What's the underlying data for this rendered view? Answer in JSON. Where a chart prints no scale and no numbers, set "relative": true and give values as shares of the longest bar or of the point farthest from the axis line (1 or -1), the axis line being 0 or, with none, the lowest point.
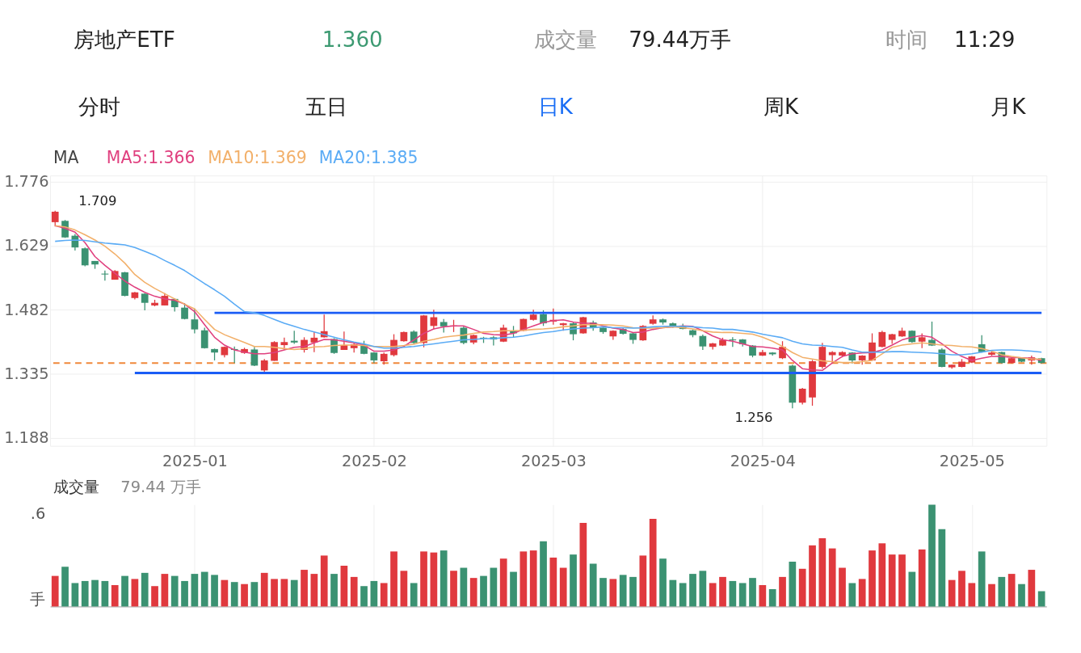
{
  "chart_data": [
    {
      "type": "candlestick",
      "title": "房地产ETF",
      "annotations": [
        "1.360",
        "成交量",
        "79.44万手",
        "时间",
        "11:29",
        "分时",
        "五日",
        "日K",
        "周K",
        "月K",
        "1.709",
        "1.256"
      ],
      "categories": [
        null,
        null,
        null,
        null,
        null,
        null,
        null,
        null,
        null,
        null,
        null,
        null,
        null,
        null,
        "2025-01",
        null,
        null,
        null,
        null,
        null,
        null,
        null,
        null,
        null,
        null,
        null,
        null,
        null,
        null,
        null,
        null,
        null,
        "2025-02",
        null,
        null,
        null,
        null,
        null,
        null,
        null,
        null,
        null,
        null,
        null,
        null,
        null,
        null,
        null,
        null,
        null,
        "2025-03",
        null,
        null,
        null,
        null,
        null,
        null,
        null,
        null,
        null,
        null,
        null,
        null,
        null,
        null,
        null,
        null,
        null,
        null,
        null,
        null,
        "2025-04",
        null,
        null,
        null,
        null,
        null,
        null,
        null,
        null,
        null,
        null,
        null,
        null,
        null,
        null,
        null,
        null,
        null,
        null,
        null,
        null,
        "2025-05",
        null,
        null,
        null,
        null,
        null,
        null,
        null
      ],
      "ohlc": [
        [
          1.683,
          1.709,
          1.673,
          1.707
        ],
        [
          1.686,
          1.688,
          1.647,
          1.648
        ],
        [
          1.652,
          1.656,
          1.618,
          1.625
        ],
        [
          1.623,
          1.625,
          1.582,
          1.584
        ],
        [
          1.594,
          1.594,
          1.576,
          1.586
        ],
        [
          1.565,
          1.572,
          1.549,
          1.563
        ],
        [
          1.551,
          1.573,
          1.551,
          1.571
        ],
        [
          1.568,
          1.569,
          1.513,
          1.514
        ],
        [
          1.509,
          1.523,
          1.506,
          1.522
        ],
        [
          1.519,
          1.52,
          1.481,
          1.498
        ],
        [
          1.492,
          1.505,
          1.49,
          1.498
        ],
        [
          1.492,
          1.52,
          1.492,
          1.514
        ],
        [
          1.507,
          1.508,
          1.478,
          1.488
        ],
        [
          1.487,
          1.497,
          1.46,
          1.461
        ],
        [
          1.46,
          1.485,
          1.428,
          1.437
        ],
        [
          1.435,
          1.441,
          1.393,
          1.394
        ],
        [
          1.392,
          1.393,
          1.366,
          1.384
        ],
        [
          1.378,
          1.398,
          1.373,
          1.397
        ],
        [
          1.392,
          1.398,
          1.36,
          1.39
        ],
        [
          1.383,
          1.395,
          1.381,
          1.392
        ],
        [
          1.391,
          1.397,
          1.353,
          1.354
        ],
        [
          1.343,
          1.369,
          1.34,
          1.366
        ],
        [
          1.365,
          1.41,
          1.365,
          1.408
        ],
        [
          1.401,
          1.418,
          1.39,
          1.408
        ],
        [
          1.411,
          1.434,
          1.404,
          1.407
        ],
        [
          1.39,
          1.419,
          1.384,
          1.413
        ],
        [
          1.407,
          1.431,
          1.385,
          1.418
        ],
        [
          1.419,
          1.471,
          1.418,
          1.433
        ],
        [
          1.415,
          1.417,
          1.381,
          1.383
        ],
        [
          1.39,
          1.432,
          1.39,
          1.401
        ],
        [
          1.394,
          1.408,
          1.384,
          1.403
        ],
        [
          1.403,
          1.411,
          1.38,
          1.381
        ],
        [
          1.384,
          1.385,
          1.36,
          1.366
        ],
        [
          1.364,
          1.384,
          1.356,
          1.381
        ],
        [
          1.378,
          1.426,
          1.375,
          1.413
        ],
        [
          1.41,
          1.432,
          1.409,
          1.431
        ],
        [
          1.432,
          1.435,
          1.404,
          1.406
        ],
        [
          1.406,
          1.47,
          1.396,
          1.469
        ],
        [
          1.445,
          1.482,
          1.437,
          1.465
        ],
        [
          1.454,
          1.461,
          1.43,
          1.444
        ],
        [
          1.444,
          1.459,
          1.431,
          1.446
        ],
        [
          1.441,
          1.444,
          1.403,
          1.406
        ],
        [
          1.407,
          1.425,
          1.403,
          1.424
        ],
        [
          1.418,
          1.42,
          1.406,
          1.416
        ],
        [
          1.419,
          1.422,
          1.4,
          1.414
        ],
        [
          1.409,
          1.448,
          1.408,
          1.441
        ],
        [
          1.434,
          1.445,
          1.419,
          1.428
        ],
        [
          1.434,
          1.462,
          1.433,
          1.461
        ],
        [
          1.459,
          1.482,
          1.457,
          1.471
        ],
        [
          1.472,
          1.481,
          1.445,
          1.451
        ],
        [
          1.455,
          1.485,
          1.448,
          1.459
        ],
        [
          1.447,
          1.452,
          1.434,
          1.451
        ],
        [
          1.451,
          1.453,
          1.412,
          1.426
        ],
        [
          1.428,
          1.466,
          1.427,
          1.465
        ],
        [
          1.453,
          1.457,
          1.434,
          1.44
        ],
        [
          1.441,
          1.443,
          1.427,
          1.431
        ],
        [
          1.421,
          1.435,
          1.413,
          1.434
        ],
        [
          1.438,
          1.44,
          1.425,
          1.427
        ],
        [
          1.428,
          1.429,
          1.404,
          1.413
        ],
        [
          1.412,
          1.447,
          1.411,
          1.445
        ],
        [
          1.45,
          1.469,
          1.448,
          1.46
        ],
        [
          1.46,
          1.462,
          1.448,
          1.453
        ],
        [
          1.451,
          1.453,
          1.441,
          1.444
        ],
        [
          1.445,
          1.45,
          1.437,
          1.438
        ],
        [
          1.435,
          1.437,
          1.419,
          1.424
        ],
        [
          1.422,
          1.425,
          1.39,
          1.398
        ],
        [
          1.397,
          1.406,
          1.391,
          1.405
        ],
        [
          1.4,
          1.418,
          1.399,
          1.413
        ],
        [
          1.414,
          1.419,
          1.397,
          1.412
        ],
        [
          1.414,
          1.415,
          1.398,
          1.403
        ],
        [
          1.4,
          1.401,
          1.373,
          1.377
        ],
        [
          1.377,
          1.39,
          1.376,
          1.385
        ],
        [
          1.384,
          1.385,
          1.377,
          1.38
        ],
        [
          1.371,
          1.41,
          1.369,
          1.397
        ],
        [
          1.354,
          1.356,
          1.256,
          1.269
        ],
        [
          1.269,
          1.303,
          1.265,
          1.301
        ],
        [
          1.281,
          1.367,
          1.262,
          1.364
        ],
        [
          1.351,
          1.406,
          1.347,
          1.397
        ],
        [
          1.378,
          1.387,
          1.36,
          1.385
        ],
        [
          1.377,
          1.387,
          1.373,
          1.385
        ],
        [
          1.384,
          1.385,
          1.359,
          1.366
        ],
        [
          1.366,
          1.378,
          1.356,
          1.377
        ],
        [
          1.366,
          1.428,
          1.365,
          1.407
        ],
        [
          1.397,
          1.434,
          1.396,
          1.431
        ],
        [
          1.413,
          1.427,
          1.404,
          1.426
        ],
        [
          1.421,
          1.441,
          1.42,
          1.434
        ],
        [
          1.434,
          1.435,
          1.406,
          1.408
        ],
        [
          1.409,
          1.428,
          1.394,
          1.419
        ],
        [
          1.413,
          1.455,
          1.399,
          1.4
        ],
        [
          1.391,
          1.394,
          1.35,
          1.351
        ],
        [
          1.35,
          1.356,
          1.347,
          1.356
        ],
        [
          1.351,
          1.369,
          1.35,
          1.363
        ],
        [
          1.361,
          1.376,
          1.36,
          1.375
        ],
        [
          1.403,
          1.424,
          1.384,
          1.385
        ],
        [
          1.379,
          1.39,
          1.377,
          1.384
        ],
        [
          1.385,
          1.386,
          1.359,
          1.36
        ],
        [
          1.36,
          1.372,
          1.359,
          1.371
        ],
        [
          1.372,
          1.373,
          1.362,
          1.363
        ],
        [
          1.366,
          1.377,
          1.356,
          1.373
        ],
        [
          1.371,
          1.372,
          1.359,
          1.36
        ]
      ],
      "colors": [
        "#e0393e",
        "#3b9272",
        "#3b9272",
        "#3b9272",
        "#3b9272",
        "#3b9272",
        "#e0393e",
        "#3b9272",
        "#e0393e",
        "#3b9272",
        "#e0393e",
        "#e0393e",
        "#3b9272",
        "#3b9272",
        "#3b9272",
        "#3b9272",
        "#3b9272",
        "#e0393e",
        "#3b9272",
        "#e0393e",
        "#3b9272",
        "#e0393e",
        "#e0393e",
        "#e0393e",
        "#3b9272",
        "#e0393e",
        "#e0393e",
        "#e0393e",
        "#3b9272",
        "#e0393e",
        "#e0393e",
        "#3b9272",
        "#3b9272",
        "#e0393e",
        "#e0393e",
        "#e0393e",
        "#3b9272",
        "#e0393e",
        "#e0393e",
        "#3b9272",
        "#e0393e",
        "#3b9272",
        "#e0393e",
        "#3b9272",
        "#3b9272",
        "#e0393e",
        "#3b9272",
        "#e0393e",
        "#e0393e",
        "#3b9272",
        "#e0393e",
        "#e0393e",
        "#3b9272",
        "#e0393e",
        "#3b9272",
        "#3b9272",
        "#e0393e",
        "#3b9272",
        "#3b9272",
        "#e0393e",
        "#e0393e",
        "#3b9272",
        "#3b9272",
        "#3b9272",
        "#3b9272",
        "#3b9272",
        "#e0393e",
        "#e0393e",
        "#3b9272",
        "#3b9272",
        "#3b9272",
        "#e0393e",
        "#3b9272",
        "#e0393e",
        "#3b9272",
        "#e0393e",
        "#e0393e",
        "#e0393e",
        "#e0393e",
        "#e0393e",
        "#3b9272",
        "#e0393e",
        "#e0393e",
        "#e0393e",
        "#e0393e",
        "#e0393e",
        "#3b9272",
        "#e0393e",
        "#3b9272",
        "#3b9272",
        "#e0393e",
        "#e0393e",
        "#e0393e",
        "#3b9272",
        "#e0393e",
        "#3b9272",
        "#e0393e",
        "#3b9272",
        "#e0393e",
        "#3b9272"
      ],
      "series": [
        {
          "name": "MA5:1.366",
          "type": "line",
          "color": "#e0407f",
          "values": [
            1.675,
            1.669,
            1.66,
            1.636,
            1.604,
            1.584,
            1.566,
            1.548,
            1.534,
            1.522,
            1.513,
            1.507,
            1.504,
            1.495,
            1.478,
            1.448,
            1.419,
            1.401,
            1.39,
            1.385,
            1.381,
            1.381,
            1.384,
            1.39,
            1.396,
            1.398,
            1.406,
            1.414,
            1.413,
            1.41,
            1.406,
            1.401,
            1.387,
            1.387,
            1.39,
            1.398,
            1.413,
            1.428,
            1.438,
            1.443,
            1.445,
            1.445,
            1.437,
            1.428,
            1.425,
            1.424,
            1.428,
            1.437,
            1.445,
            1.453,
            1.457,
            1.459,
            1.454,
            1.451,
            1.451,
            1.445,
            1.44,
            1.437,
            1.43,
            1.431,
            1.437,
            1.441,
            1.443,
            1.445,
            1.444,
            1.434,
            1.422,
            1.413,
            1.41,
            1.404,
            1.398,
            1.397,
            1.394,
            1.39,
            1.366,
            1.347,
            1.344,
            1.343,
            1.36,
            1.375,
            1.381,
            1.383,
            1.384,
            1.39,
            1.401,
            1.413,
            1.419,
            1.423,
            1.419,
            1.404,
            1.387,
            1.375,
            1.366,
            1.371,
            1.375,
            1.375,
            1.373,
            1.372,
            1.371,
            1.366
          ]
        },
        {
          "name": "MA10:1.369",
          "type": "line",
          "color": "#f2b06a",
          "values": [
            1.675,
            1.672,
            1.665,
            1.654,
            1.642,
            1.628,
            1.61,
            1.589,
            1.563,
            1.545,
            1.531,
            1.519,
            1.507,
            1.495,
            1.484,
            1.46,
            1.437,
            1.425,
            1.416,
            1.407,
            1.398,
            1.398,
            1.396,
            1.393,
            1.391,
            1.393,
            1.397,
            1.398,
            1.4,
            1.401,
            1.401,
            1.4,
            1.398,
            1.398,
            1.398,
            1.4,
            1.403,
            1.41,
            1.414,
            1.419,
            1.422,
            1.424,
            1.428,
            1.431,
            1.432,
            1.434,
            1.434,
            1.435,
            1.437,
            1.438,
            1.44,
            1.443,
            1.445,
            1.448,
            1.448,
            1.448,
            1.447,
            1.445,
            1.441,
            1.44,
            1.44,
            1.441,
            1.443,
            1.441,
            1.438,
            1.434,
            1.431,
            1.43,
            1.43,
            1.428,
            1.426,
            1.419,
            1.41,
            1.398,
            1.384,
            1.373,
            1.369,
            1.365,
            1.363,
            1.361,
            1.361,
            1.363,
            1.366,
            1.381,
            1.396,
            1.401,
            1.404,
            1.406,
            1.404,
            1.401,
            1.4,
            1.398,
            1.397,
            1.393,
            1.387,
            1.379,
            1.375,
            1.372,
            1.369,
            1.369
          ]
        },
        {
          "name": "MA20:1.385",
          "type": "line",
          "color": "#5aabf5",
          "values": [
            1.639,
            1.641,
            1.642,
            1.641,
            1.638,
            1.635,
            1.633,
            1.631,
            1.625,
            1.616,
            1.607,
            1.595,
            1.584,
            1.572,
            1.557,
            1.542,
            1.528,
            1.513,
            1.495,
            1.478,
            1.475,
            1.469,
            1.46,
            1.451,
            1.444,
            1.437,
            1.431,
            1.425,
            1.419,
            1.413,
            1.408,
            1.404,
            1.398,
            1.394,
            1.394,
            1.396,
            1.398,
            1.401,
            1.404,
            1.407,
            1.41,
            1.413,
            1.414,
            1.416,
            1.416,
            1.418,
            1.419,
            1.422,
            1.426,
            1.43,
            1.432,
            1.436,
            1.438,
            1.44,
            1.441,
            1.443,
            1.441,
            1.441,
            1.44,
            1.441,
            1.443,
            1.444,
            1.444,
            1.444,
            1.443,
            1.441,
            1.44,
            1.437,
            1.437,
            1.434,
            1.431,
            1.426,
            1.422,
            1.418,
            1.41,
            1.404,
            1.401,
            1.4,
            1.398,
            1.396,
            1.39,
            1.385,
            1.385,
            1.385,
            1.386,
            1.386,
            1.385,
            1.384,
            1.383,
            1.381,
            1.379,
            1.379,
            1.381,
            1.385,
            1.389,
            1.39,
            1.39,
            1.389,
            1.387,
            1.385
          ]
        },
        {
          "type": "line",
          "color": "#1a5cf5",
          "values": [
            null,
            null,
            null,
            null,
            null,
            null,
            null,
            null,
            null,
            null,
            null,
            null,
            null,
            null,
            null,
            null,
            1.475,
            1.475,
            1.475,
            1.475,
            1.475,
            1.475,
            1.475,
            1.475,
            1.475,
            1.475,
            1.475,
            1.475,
            1.475,
            1.475,
            1.475,
            1.475,
            1.475,
            1.475,
            1.475,
            1.475,
            1.475,
            1.475,
            1.475,
            1.475,
            1.475,
            1.475,
            1.475,
            1.475,
            1.475,
            1.475,
            1.475,
            1.475,
            1.475,
            1.475,
            1.475,
            1.475,
            1.475,
            1.475,
            1.475,
            1.475,
            1.475,
            1.475,
            1.475,
            1.475,
            1.475,
            1.475,
            1.475,
            1.475,
            1.475,
            1.475,
            1.475,
            1.475,
            1.475,
            1.475,
            1.475,
            1.475,
            1.475,
            1.475,
            1.475,
            1.475,
            1.475,
            1.475,
            1.475,
            1.475,
            1.475,
            1.475,
            1.475,
            1.475,
            1.475,
            1.475,
            1.475,
            1.475,
            1.475,
            1.475,
            1.475,
            1.475,
            1.475,
            1.475,
            1.475,
            1.475,
            1.475,
            1.475,
            1.475,
            1.475
          ]
        },
        {
          "type": "line",
          "color": "#1a5cf5",
          "values": [
            null,
            null,
            null,
            null,
            null,
            null,
            null,
            null,
            1.337,
            1.337,
            1.337,
            1.337,
            1.337,
            1.337,
            1.337,
            1.337,
            1.337,
            1.337,
            1.337,
            1.337,
            1.337,
            1.337,
            1.337,
            1.337,
            1.337,
            1.337,
            1.337,
            1.337,
            1.337,
            1.337,
            1.337,
            1.337,
            1.337,
            1.337,
            1.337,
            1.337,
            1.337,
            1.337,
            1.337,
            1.337,
            1.337,
            1.337,
            1.337,
            1.337,
            1.337,
            1.337,
            1.337,
            1.337,
            1.337,
            1.337,
            1.337,
            1.337,
            1.337,
            1.337,
            1.337,
            1.337,
            1.337,
            1.337,
            1.337,
            1.337,
            1.337,
            1.337,
            1.337,
            1.337,
            1.337,
            1.337,
            1.337,
            1.337,
            1.337,
            1.337,
            1.337,
            1.337,
            1.337,
            1.337,
            1.337,
            1.337,
            1.337,
            1.337,
            1.337,
            1.337,
            1.337,
            1.337,
            1.337,
            1.337,
            1.337,
            1.337,
            1.337,
            1.337,
            1.337,
            1.337,
            1.337,
            1.337,
            1.337,
            1.337,
            1.337,
            1.337,
            1.337,
            1.337,
            1.337,
            1.337
          ]
        }
      ],
      "legend_title": "MA",
      "legend": "top left",
      "ylim": [
        1.17,
        1.79
      ],
      "yticks": [
        1.188,
        1.335,
        1.482,
        1.629,
        1.776
      ],
      "grid": true,
      "ref_lines": [
        {
          "axis": "y",
          "value": 1.36,
          "color": "#f0883a",
          "line_style": "dashed"
        }
      ]
    },
    {
      "type": "bar",
      "title": "成交量",
      "subtitle": "79.44 万手",
      "relative": true,
      "tick_labels": false,
      "grid": "x",
      "annotations": [
        ".6",
        "手"
      ],
      "categories": [
        null,
        null,
        null,
        null,
        null,
        null,
        null,
        null,
        null,
        null,
        null,
        null,
        null,
        null,
        "2025-01",
        null,
        null,
        null,
        null,
        null,
        null,
        null,
        null,
        null,
        null,
        null,
        null,
        null,
        null,
        null,
        null,
        null,
        "2025-02",
        null,
        null,
        null,
        null,
        null,
        null,
        null,
        null,
        null,
        null,
        null,
        null,
        null,
        null,
        null,
        null,
        null,
        "2025-03",
        null,
        null,
        null,
        null,
        null,
        null,
        null,
        null,
        null,
        null,
        null,
        null,
        null,
        null,
        null,
        null,
        null,
        null,
        null,
        null,
        "2025-04",
        null,
        null,
        null,
        null,
        null,
        null,
        null,
        null,
        null,
        null,
        null,
        null,
        null,
        null,
        null,
        null,
        null,
        null,
        null,
        null,
        "2025-05",
        null,
        null,
        null,
        null,
        null,
        null,
        null
      ],
      "values": [
        0.3,
        0.39,
        0.23,
        0.25,
        0.26,
        0.25,
        0.21,
        0.3,
        0.27,
        0.33,
        0.2,
        0.32,
        0.3,
        0.25,
        0.32,
        0.34,
        0.31,
        0.26,
        0.24,
        0.22,
        0.24,
        0.33,
        0.27,
        0.27,
        0.26,
        0.36,
        0.32,
        0.5,
        0.32,
        0.4,
        0.29,
        0.2,
        0.25,
        0.23,
        0.54,
        0.35,
        0.23,
        0.54,
        0.53,
        0.55,
        0.35,
        0.38,
        0.28,
        0.3,
        0.38,
        0.47,
        0.34,
        0.54,
        0.55,
        0.64,
        0.48,
        0.38,
        0.51,
        0.82,
        0.42,
        0.28,
        0.27,
        0.31,
        0.29,
        0.5,
        0.86,
        0.47,
        0.26,
        0.23,
        0.32,
        0.35,
        0.23,
        0.29,
        0.25,
        0.23,
        0.28,
        0.21,
        0.17,
        0.29,
        0.44,
        0.37,
        0.6,
        0.67,
        0.57,
        0.38,
        0.23,
        0.27,
        0.55,
        0.62,
        0.51,
        0.51,
        0.34,
        0.56,
        1,
        0.76,
        0.26,
        0.35,
        0.23,
        0.54,
        0.22,
        0.29,
        0.32,
        0.22,
        0.36,
        0.15
      ],
      "colors": [
        "#e0393e",
        "#3b9272",
        "#3b9272",
        "#3b9272",
        "#3b9272",
        "#3b9272",
        "#e0393e",
        "#3b9272",
        "#e0393e",
        "#3b9272",
        "#e0393e",
        "#e0393e",
        "#3b9272",
        "#3b9272",
        "#3b9272",
        "#3b9272",
        "#3b9272",
        "#e0393e",
        "#3b9272",
        "#e0393e",
        "#3b9272",
        "#e0393e",
        "#e0393e",
        "#e0393e",
        "#3b9272",
        "#e0393e",
        "#e0393e",
        "#e0393e",
        "#3b9272",
        "#e0393e",
        "#e0393e",
        "#3b9272",
        "#3b9272",
        "#e0393e",
        "#e0393e",
        "#e0393e",
        "#3b9272",
        "#e0393e",
        "#e0393e",
        "#3b9272",
        "#e0393e",
        "#3b9272",
        "#e0393e",
        "#3b9272",
        "#3b9272",
        "#e0393e",
        "#3b9272",
        "#e0393e",
        "#e0393e",
        "#3b9272",
        "#e0393e",
        "#e0393e",
        "#3b9272",
        "#e0393e",
        "#3b9272",
        "#3b9272",
        "#e0393e",
        "#3b9272",
        "#3b9272",
        "#e0393e",
        "#e0393e",
        "#3b9272",
        "#3b9272",
        "#3b9272",
        "#3b9272",
        "#3b9272",
        "#e0393e",
        "#e0393e",
        "#3b9272",
        "#3b9272",
        "#3b9272",
        "#e0393e",
        "#3b9272",
        "#e0393e",
        "#3b9272",
        "#e0393e",
        "#e0393e",
        "#e0393e",
        "#e0393e",
        "#e0393e",
        "#3b9272",
        "#e0393e",
        "#e0393e",
        "#e0393e",
        "#e0393e",
        "#e0393e",
        "#3b9272",
        "#e0393e",
        "#3b9272",
        "#3b9272",
        "#e0393e",
        "#e0393e",
        "#e0393e",
        "#3b9272",
        "#e0393e",
        "#3b9272",
        "#e0393e",
        "#3b9272",
        "#e0393e",
        "#3b9272"
      ]
    }
  ]
}
